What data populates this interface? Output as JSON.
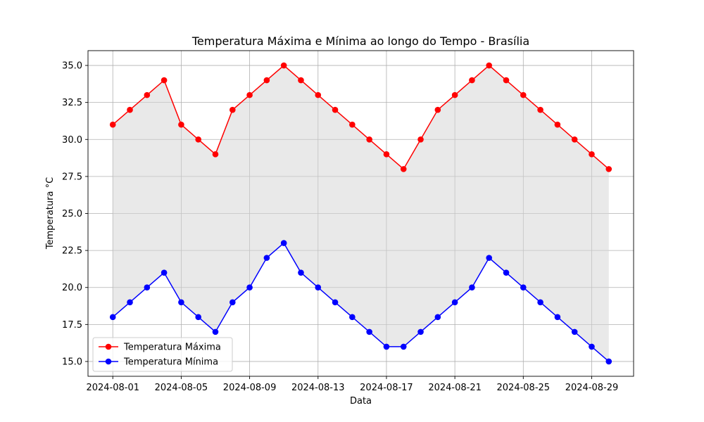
{
  "chart_data": {
    "type": "line",
    "title": "Temperatura Máxima e Mínima ao longo do Tempo - Brasília",
    "xlabel": "Data",
    "ylabel": "Temperatura °C",
    "x": [
      "2024-08-01",
      "2024-08-02",
      "2024-08-03",
      "2024-08-04",
      "2024-08-05",
      "2024-08-06",
      "2024-08-07",
      "2024-08-08",
      "2024-08-09",
      "2024-08-10",
      "2024-08-11",
      "2024-08-12",
      "2024-08-13",
      "2024-08-14",
      "2024-08-15",
      "2024-08-16",
      "2024-08-17",
      "2024-08-18",
      "2024-08-19",
      "2024-08-20",
      "2024-08-21",
      "2024-08-22",
      "2024-08-23",
      "2024-08-24",
      "2024-08-25",
      "2024-08-26",
      "2024-08-27",
      "2024-08-28",
      "2024-08-29",
      "2024-08-30"
    ],
    "series": [
      {
        "name": "Temperatura Máxima",
        "color": "#ff0000",
        "values": [
          31,
          32,
          33,
          34,
          31,
          30,
          29,
          32,
          33,
          34,
          35,
          34,
          33,
          32,
          31,
          30,
          29,
          28,
          30,
          32,
          33,
          34,
          35,
          34,
          33,
          32,
          31,
          30,
          29,
          28
        ]
      },
      {
        "name": "Temperatura Mínima",
        "color": "#0000ff",
        "values": [
          18,
          19,
          20,
          21,
          19,
          18,
          17,
          19,
          20,
          22,
          23,
          21,
          20,
          19,
          18,
          17,
          16,
          16,
          17,
          18,
          19,
          20,
          22,
          21,
          20,
          19,
          18,
          17,
          16,
          15
        ]
      }
    ],
    "fill_between": {
      "series": [
        "Temperatura Máxima",
        "Temperatura Mínima"
      ],
      "color": "#d3d3d3",
      "opacity": 0.5
    },
    "xticks": [
      "2024-08-01",
      "2024-08-05",
      "2024-08-09",
      "2024-08-13",
      "2024-08-17",
      "2024-08-21",
      "2024-08-25",
      "2024-08-29"
    ],
    "yticks": [
      "15.0",
      "17.5",
      "20.0",
      "22.5",
      "25.0",
      "27.5",
      "30.0",
      "32.5",
      "35.0"
    ],
    "ylim": [
      14.0,
      36.0
    ],
    "grid": true,
    "legend_position": "lower-left"
  }
}
